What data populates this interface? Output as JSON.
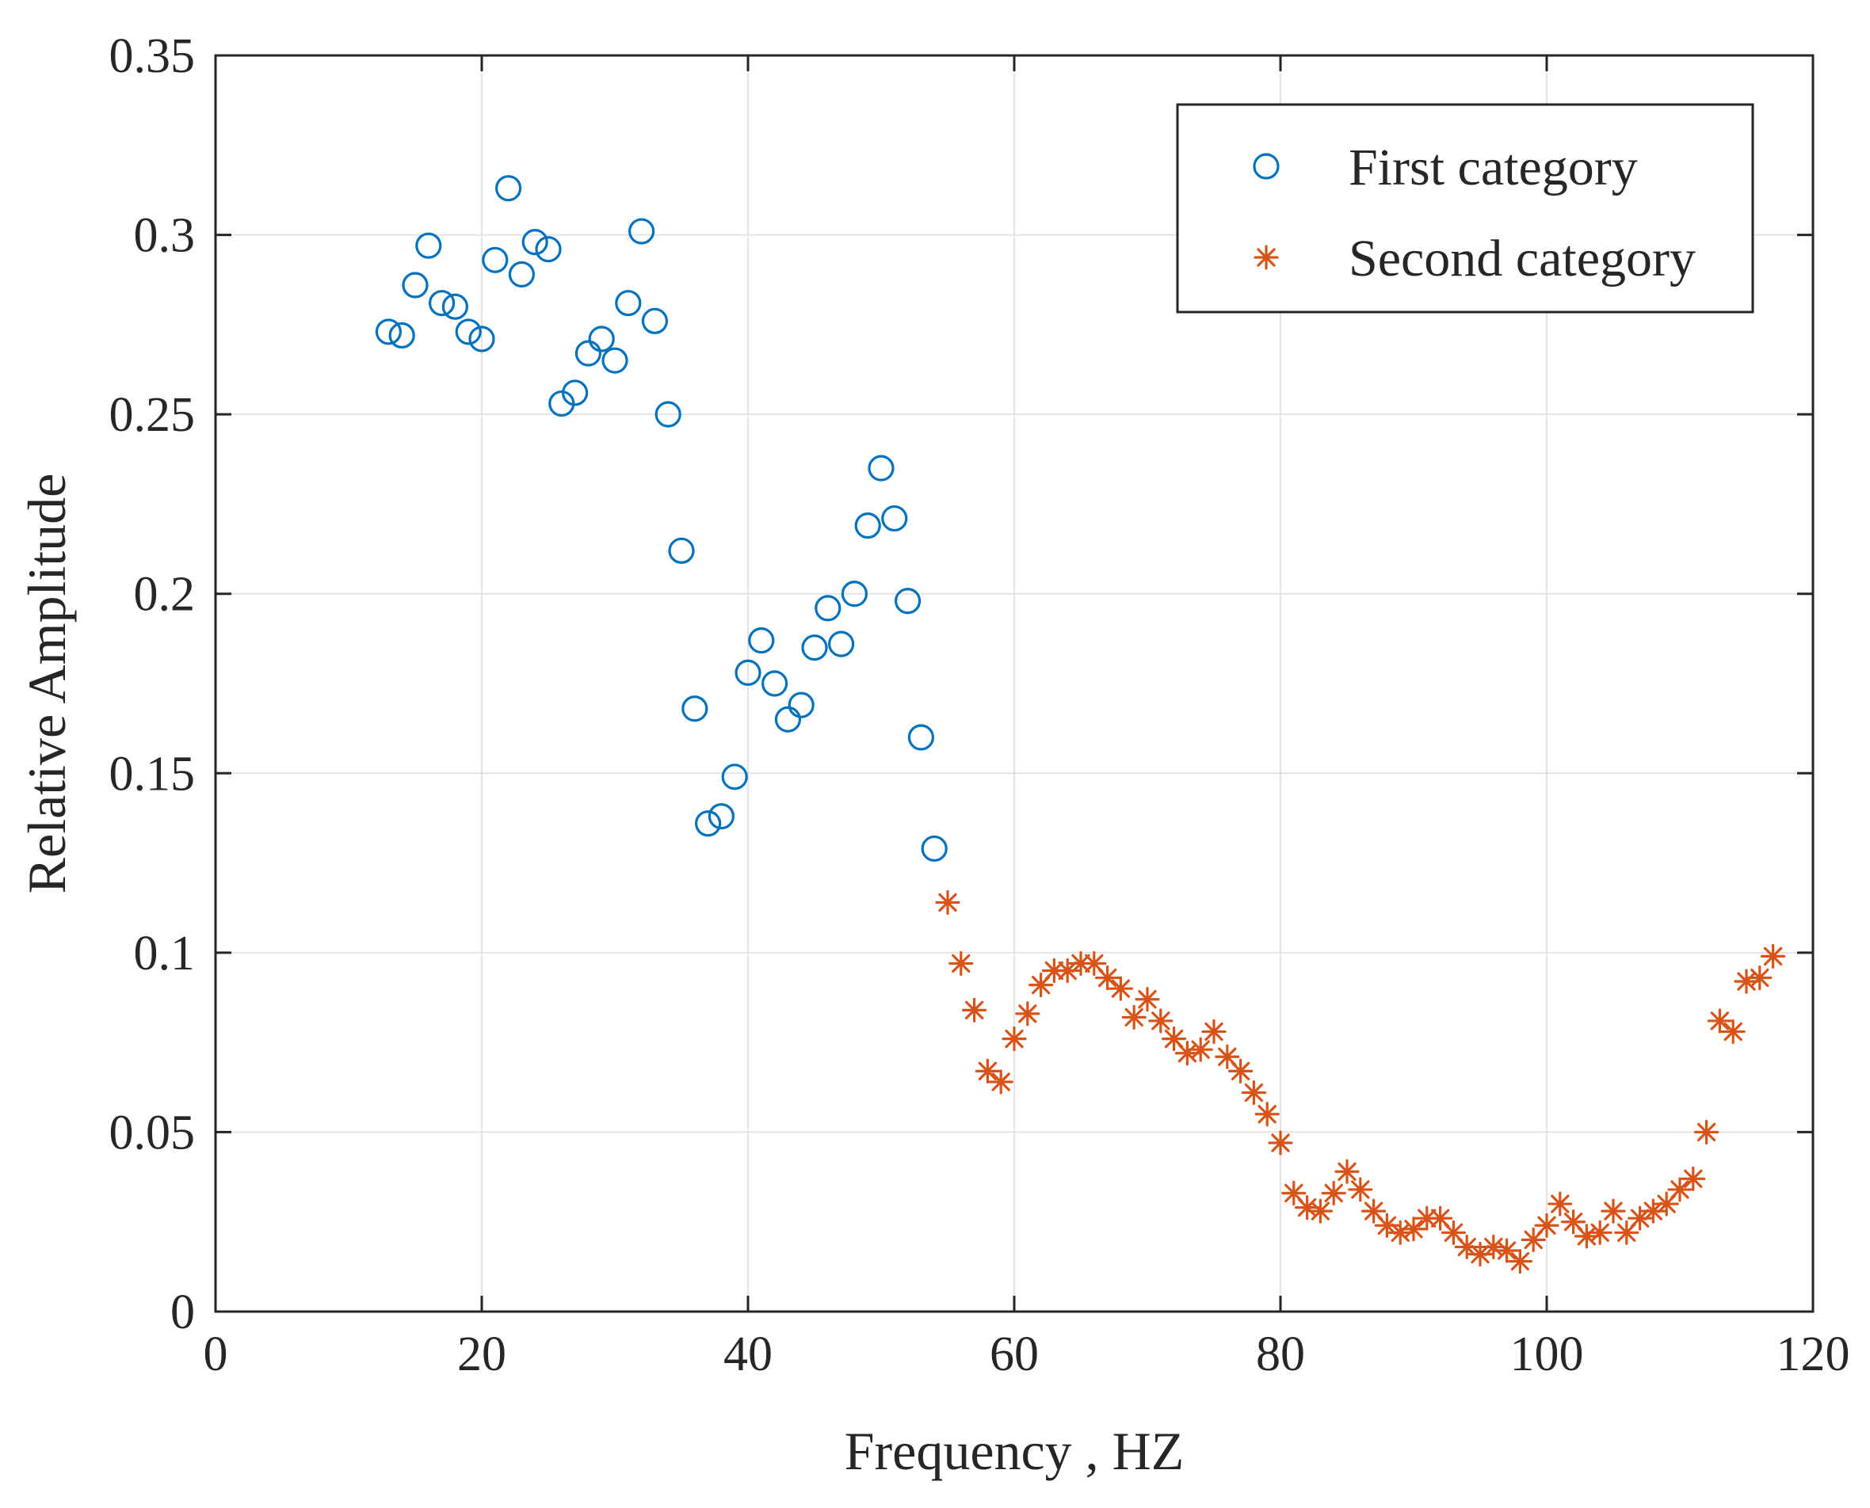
{
  "chart_data": {
    "type": "scatter",
    "title": "",
    "xlabel": "Frequency , HZ",
    "ylabel": "Relative Amplitude",
    "xlim": [
      0,
      120
    ],
    "ylim": [
      0,
      0.35
    ],
    "xticks": [
      0,
      20,
      40,
      60,
      80,
      100,
      120
    ],
    "xtick_labels": [
      "0",
      "20",
      "40",
      "60",
      "80",
      "100",
      "120"
    ],
    "yticks": [
      0,
      0.05,
      0.1,
      0.15,
      0.2,
      0.25,
      0.3,
      0.35
    ],
    "ytick_labels": [
      "0",
      "0.05",
      "0.1",
      "0.15",
      "0.2",
      "0.25",
      "0.3",
      "0.35"
    ],
    "grid": true,
    "legend_position": "top-right",
    "series": [
      {
        "name": "First category",
        "marker": "circle",
        "color": "#0072BD",
        "x": [
          13,
          14,
          15,
          16,
          17,
          18,
          19,
          20,
          21,
          22,
          23,
          24,
          25,
          26,
          27,
          28,
          29,
          30,
          31,
          32,
          33,
          34,
          35,
          36,
          37,
          38,
          39,
          40,
          41,
          42,
          43,
          44,
          45,
          46,
          47,
          48,
          49,
          50,
          51,
          52,
          53,
          54
        ],
        "y": [
          0.273,
          0.272,
          0.286,
          0.297,
          0.281,
          0.28,
          0.273,
          0.271,
          0.293,
          0.313,
          0.289,
          0.298,
          0.296,
          0.253,
          0.256,
          0.267,
          0.271,
          0.265,
          0.281,
          0.301,
          0.276,
          0.25,
          0.212,
          0.168,
          0.136,
          0.138,
          0.149,
          0.178,
          0.187,
          0.175,
          0.165,
          0.169,
          0.185,
          0.196,
          0.186,
          0.2,
          0.219,
          0.235,
          0.221,
          0.198,
          0.16,
          0.129
        ]
      },
      {
        "name": "Second category",
        "marker": "asterisk",
        "color": "#D95319",
        "x": [
          55,
          56,
          57,
          58,
          59,
          60,
          61,
          62,
          63,
          64,
          65,
          66,
          67,
          68,
          69,
          70,
          71,
          72,
          73,
          74,
          75,
          76,
          77,
          78,
          79,
          80,
          81,
          82,
          83,
          84,
          85,
          86,
          87,
          88,
          89,
          90,
          91,
          92,
          93,
          94,
          95,
          96,
          97,
          98,
          99,
          100,
          101,
          102,
          103,
          104,
          105,
          106,
          107,
          108,
          109,
          110,
          111,
          112,
          113,
          114,
          115,
          116,
          117
        ],
        "y": [
          0.114,
          0.097,
          0.084,
          0.067,
          0.064,
          0.076,
          0.083,
          0.091,
          0.095,
          0.095,
          0.097,
          0.097,
          0.093,
          0.09,
          0.082,
          0.087,
          0.081,
          0.076,
          0.072,
          0.073,
          0.078,
          0.071,
          0.067,
          0.061,
          0.055,
          0.047,
          0.033,
          0.029,
          0.028,
          0.033,
          0.039,
          0.034,
          0.028,
          0.024,
          0.022,
          0.023,
          0.026,
          0.026,
          0.022,
          0.018,
          0.016,
          0.018,
          0.017,
          0.014,
          0.02,
          0.024,
          0.03,
          0.025,
          0.021,
          0.022,
          0.028,
          0.022,
          0.026,
          0.028,
          0.03,
          0.034,
          0.037,
          0.05,
          0.081,
          0.078,
          0.092,
          0.093,
          0.099
        ]
      }
    ]
  }
}
